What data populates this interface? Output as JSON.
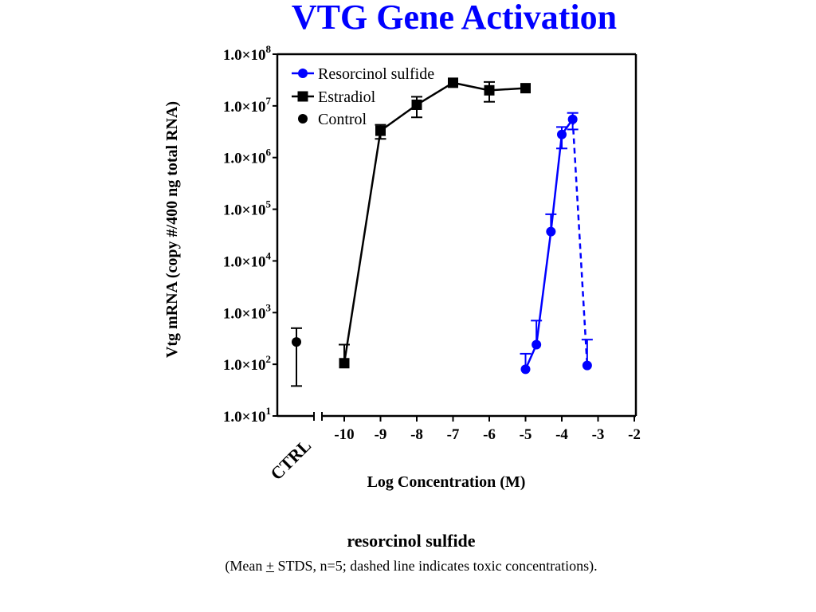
{
  "slide": {
    "title": "VTG Gene Activation",
    "caption_title": "resorcinol sulfide",
    "caption_open": "(Mean ",
    "caption_pm": "+",
    "caption_rest": " STDS, n=5; dashed line indicates toxic concentrations)."
  },
  "chart_data": {
    "type": "line",
    "title": "VTG Gene Activation",
    "xlabel": "Log Concentration (M)",
    "ylabel": "Vtg mRNA (copy #/400 ng total RNA)",
    "y_scale": "log",
    "ylim_log10": [
      1,
      8
    ],
    "xlim": [
      -10.5,
      -2
    ],
    "x_ticks": [
      -10,
      -9,
      -8,
      -7,
      -6,
      -5,
      -4,
      -3,
      -2
    ],
    "x_tick_labels": [
      "-10",
      "-9",
      "-8",
      "-7",
      "-6",
      "-5",
      "-4",
      "-3",
      "-2"
    ],
    "y_ticks_log10": [
      1,
      2,
      3,
      4,
      5,
      6,
      7,
      8
    ],
    "y_tick_mantissa": "1.0×10",
    "y_tick_exponents": [
      "1",
      "2",
      "3",
      "4",
      "5",
      "6",
      "7",
      "8"
    ],
    "ctrl_label": "CTRL",
    "legend_position": "top-left",
    "series": [
      {
        "name": "Resorcinol sulfide",
        "color": "#0000ff",
        "marker": "circle",
        "points": [
          {
            "x": -5.0,
            "y": 80,
            "err_upper": 160
          },
          {
            "x": -4.7,
            "y": 240,
            "err_upper": 700
          },
          {
            "x": -4.3,
            "y": 37000,
            "err_upper": 80000
          },
          {
            "x": -4.0,
            "y": 2800000,
            "err_upper": 3900000,
            "err_lower": 1500000
          },
          {
            "x": -3.7,
            "y": 5500000,
            "err_upper": 7300000,
            "err_lower": 3500000
          },
          {
            "x": -3.3,
            "y": 95,
            "err_upper": 300
          }
        ],
        "toxic_from_x": -3.7
      },
      {
        "name": "Estradiol",
        "color": "#000000",
        "marker": "square",
        "points": [
          {
            "x": -10,
            "y": 105,
            "err_upper": 240
          },
          {
            "x": -9,
            "y": 3300000,
            "err_upper": 4300000,
            "err_lower": 2300000
          },
          {
            "x": -8,
            "y": 10500000,
            "err_upper": 15000000,
            "err_lower": 6000000
          },
          {
            "x": -7,
            "y": 28000000
          },
          {
            "x": -6,
            "y": 20000000,
            "err_upper": 29000000,
            "err_lower": 12000000
          },
          {
            "x": -5,
            "y": 22000000
          }
        ]
      },
      {
        "name": "Control",
        "color": "#000000",
        "marker": "circle",
        "points": [
          {
            "x": "CTRL",
            "y": 270,
            "err_upper": 500,
            "err_lower": 38
          }
        ]
      }
    ]
  }
}
